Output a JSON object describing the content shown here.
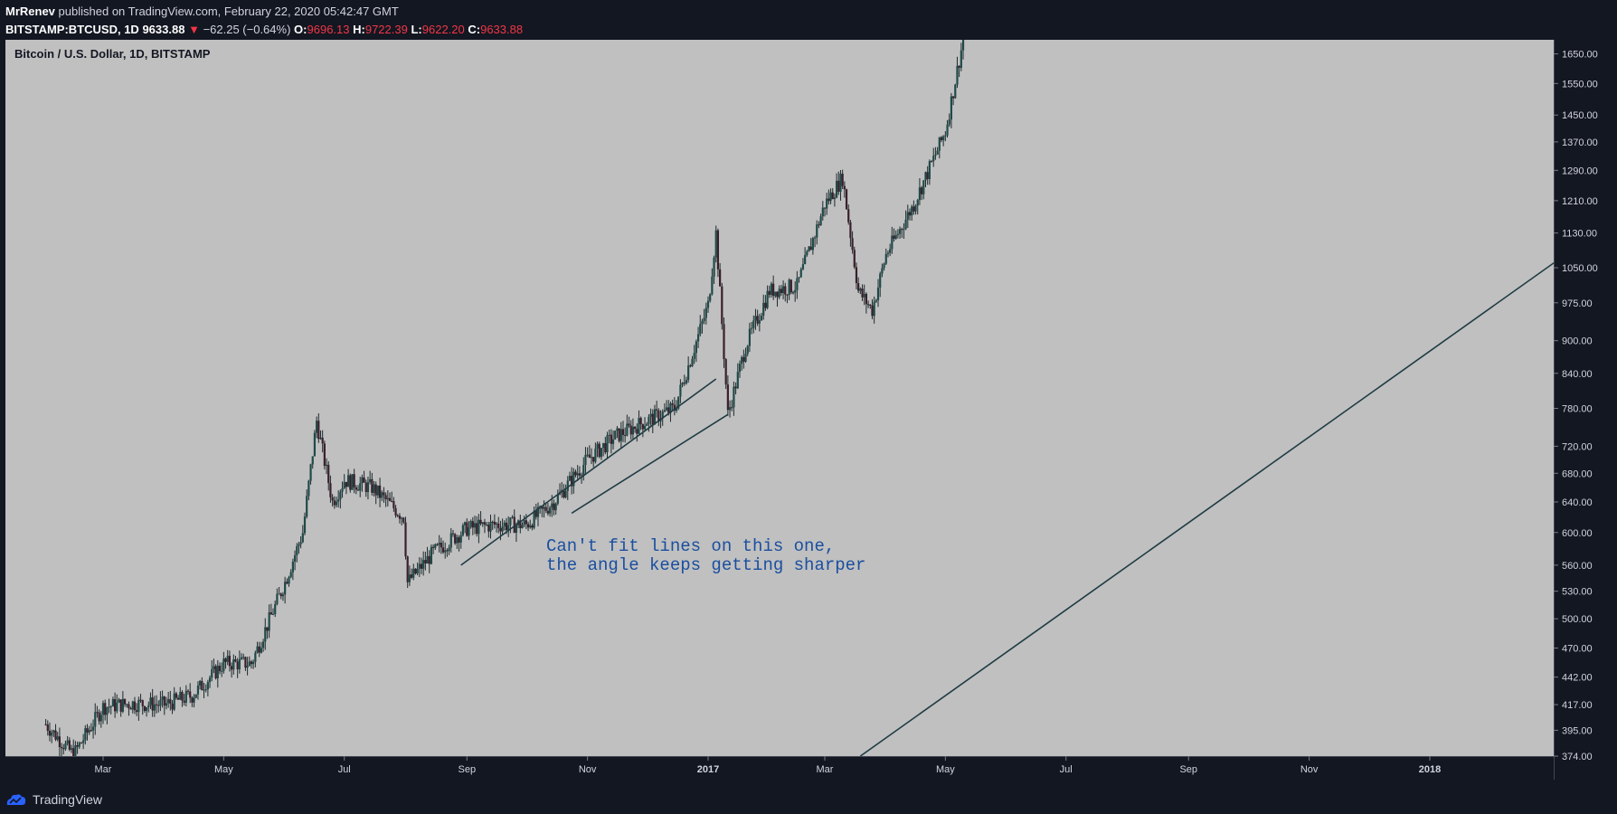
{
  "header": {
    "author": "MrRenev",
    "published": "published on TradingView.com, February 22, 2020 05:42:47 GMT",
    "symbol_line": "BITSTAMP:BTCUSD, 1D",
    "last": "9633.88",
    "change_arrow": "▼",
    "change": "−62.25 (−0.64%)",
    "open_label": "O:",
    "open": "9696.13",
    "high_label": "H:",
    "high": "9722.39",
    "low_label": "L:",
    "low": "9622.20",
    "close_label": "C:",
    "close": "9633.88"
  },
  "chart_title": "Bitcoin / U.S. Dollar, 1D, BITSTAMP",
  "annotation": "Can't fit lines on this one,\nthe angle keeps getting sharper",
  "footer": {
    "brand": "TradingView",
    "logo_icon": "tradingview-logo-icon"
  },
  "colors": {
    "background": "#131722",
    "plot_bg": "#c0c0c0",
    "candle": "#1e2a2c",
    "trendline": "#1f3b44",
    "annotation": "#1a4fa0",
    "down": "#f23645"
  },
  "chart_data": {
    "type": "candlestick",
    "title": "Bitcoin / U.S. Dollar, 1D, BITSTAMP",
    "scale": "log",
    "ylim": [
      374,
      1700
    ],
    "y_ticks": [
      "374.00",
      "395.00",
      "417.00",
      "442.00",
      "470.00",
      "500.00",
      "530.00",
      "560.00",
      "600.00",
      "640.00",
      "680.00",
      "720.00",
      "780.00",
      "840.00",
      "900.00",
      "975.00",
      "1050.00",
      "1130.00",
      "1210.00",
      "1290.00",
      "1370.00",
      "1450.00",
      "1550.00",
      "1650.00"
    ],
    "x_ticks": [
      "Mar",
      "May",
      "Jul",
      "Sep",
      "Nov",
      "2017",
      "Mar",
      "May",
      "Jul",
      "Sep",
      "Nov",
      "2018"
    ],
    "series": [
      {
        "x": [
          "2016-02-01",
          "2016-02-15",
          "2016-03-01",
          "2016-03-15",
          "2016-04-01",
          "2016-04-15",
          "2016-05-01",
          "2016-05-15",
          "2016-06-01",
          "2016-06-10",
          "2016-06-17",
          "2016-06-25",
          "2016-07-01",
          "2016-07-15",
          "2016-07-31",
          "2016-08-02",
          "2016-08-15",
          "2016-09-01",
          "2016-09-15",
          "2016-10-01",
          "2016-10-15",
          "2016-11-01",
          "2016-11-15",
          "2016-12-01",
          "2016-12-15",
          "2017-01-01",
          "2017-01-05",
          "2017-01-11",
          "2017-01-20",
          "2017-02-01",
          "2017-02-15",
          "2017-03-01",
          "2017-03-10",
          "2017-03-18",
          "2017-03-25",
          "2017-04-01",
          "2017-04-15",
          "2017-05-01",
          "2017-05-10"
        ],
        "values": [
          400,
          375,
          415,
          418,
          417,
          425,
          455,
          455,
          540,
          600,
          760,
          640,
          670,
          660,
          620,
          540,
          575,
          605,
          610,
          610,
          640,
          700,
          735,
          760,
          780,
          970,
          1130,
          770,
          890,
          1000,
          1010,
          1200,
          1270,
          1000,
          960,
          1080,
          1200,
          1400,
          1700
        ]
      }
    ],
    "trendlines": [
      {
        "from": [
          "2016-08-29",
          560
        ],
        "to": [
          "2017-01-05",
          830
        ]
      },
      {
        "from": [
          "2016-10-24",
          625
        ],
        "to": [
          "2017-01-11",
          770
        ]
      },
      {
        "from": [
          "2017-03-19",
          374
        ],
        "to": [
          "2018-03-20",
          1110
        ]
      }
    ],
    "grid": false
  }
}
